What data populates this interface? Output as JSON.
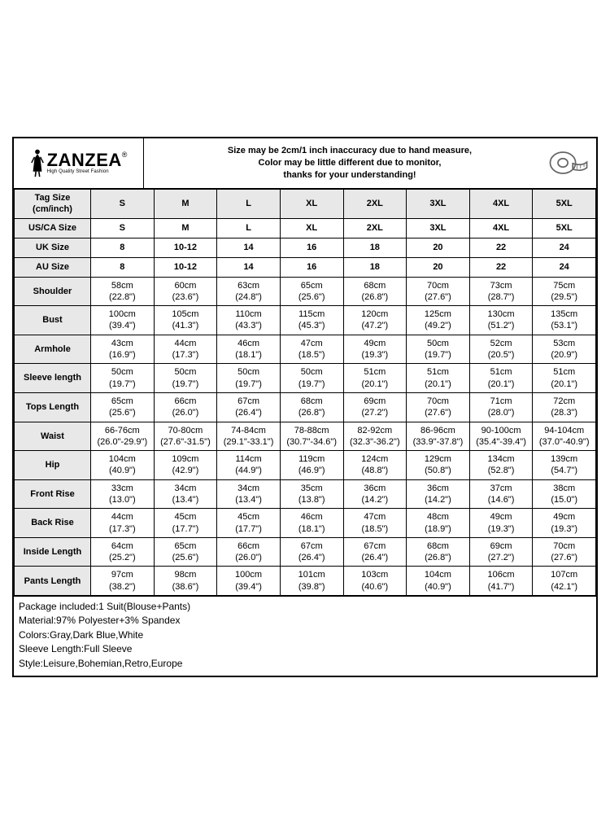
{
  "brand": {
    "name": "ZANZEA",
    "reg": "®",
    "tagline": "High Quality Street Fashion"
  },
  "notice": {
    "line1": "Size may be 2cm/1 inch inaccuracy due to hand measure,",
    "line2": "Color may be little different due to monitor,",
    "line3": "thanks for your understanding!"
  },
  "columns": [
    "S",
    "M",
    "L",
    "XL",
    "2XL",
    "3XL",
    "4XL",
    "5XL"
  ],
  "row_labels": {
    "tag": "Tag Size\n(cm/inch)",
    "us": "US/CA Size",
    "uk": "UK Size",
    "au": "AU Size",
    "shoulder": "Shoulder",
    "bust": "Bust",
    "armhole": "Armhole",
    "sleeve": "Sleeve length",
    "tops": "Tops Length",
    "waist": "Waist",
    "hip": "Hip",
    "frise": "Front Rise",
    "brise": "Back Rise",
    "inside": "Inside Length",
    "pants": "Pants Length"
  },
  "size_rows": {
    "us": [
      "S",
      "M",
      "L",
      "XL",
      "2XL",
      "3XL",
      "4XL",
      "5XL"
    ],
    "uk": [
      "8",
      "10-12",
      "14",
      "16",
      "18",
      "20",
      "22",
      "24"
    ],
    "au": [
      "8",
      "10-12",
      "14",
      "16",
      "18",
      "20",
      "22",
      "24"
    ]
  },
  "meas": {
    "shoulder": [
      {
        "cm": "58cm",
        "in": "(22.8\")"
      },
      {
        "cm": "60cm",
        "in": "(23.6\")"
      },
      {
        "cm": "63cm",
        "in": "(24.8\")"
      },
      {
        "cm": "65cm",
        "in": "(25.6\")"
      },
      {
        "cm": "68cm",
        "in": "(26.8\")"
      },
      {
        "cm": "70cm",
        "in": "(27.6\")"
      },
      {
        "cm": "73cm",
        "in": "(28.7\")"
      },
      {
        "cm": "75cm",
        "in": "(29.5\")"
      }
    ],
    "bust": [
      {
        "cm": "100cm",
        "in": "(39.4\")"
      },
      {
        "cm": "105cm",
        "in": "(41.3\")"
      },
      {
        "cm": "110cm",
        "in": "(43.3\")"
      },
      {
        "cm": "115cm",
        "in": "(45.3\")"
      },
      {
        "cm": "120cm",
        "in": "(47.2\")"
      },
      {
        "cm": "125cm",
        "in": "(49.2\")"
      },
      {
        "cm": "130cm",
        "in": "(51.2\")"
      },
      {
        "cm": "135cm",
        "in": "(53.1\")"
      }
    ],
    "armhole": [
      {
        "cm": "43cm",
        "in": "(16.9\")"
      },
      {
        "cm": "44cm",
        "in": "(17.3\")"
      },
      {
        "cm": "46cm",
        "in": "(18.1\")"
      },
      {
        "cm": "47cm",
        "in": "(18.5\")"
      },
      {
        "cm": "49cm",
        "in": "(19.3\")"
      },
      {
        "cm": "50cm",
        "in": "(19.7\")"
      },
      {
        "cm": "52cm",
        "in": "(20.5\")"
      },
      {
        "cm": "53cm",
        "in": "(20.9\")"
      }
    ],
    "sleeve": [
      {
        "cm": "50cm",
        "in": "(19.7\")"
      },
      {
        "cm": "50cm",
        "in": "(19.7\")"
      },
      {
        "cm": "50cm",
        "in": "(19.7\")"
      },
      {
        "cm": "50cm",
        "in": "(19.7\")"
      },
      {
        "cm": "51cm",
        "in": "(20.1\")"
      },
      {
        "cm": "51cm",
        "in": "(20.1\")"
      },
      {
        "cm": "51cm",
        "in": "(20.1\")"
      },
      {
        "cm": "51cm",
        "in": "(20.1\")"
      }
    ],
    "tops": [
      {
        "cm": "65cm",
        "in": "(25.6\")"
      },
      {
        "cm": "66cm",
        "in": "(26.0\")"
      },
      {
        "cm": "67cm",
        "in": "(26.4\")"
      },
      {
        "cm": "68cm",
        "in": "(26.8\")"
      },
      {
        "cm": "69cm",
        "in": "(27.2\")"
      },
      {
        "cm": "70cm",
        "in": "(27.6\")"
      },
      {
        "cm": "71cm",
        "in": "(28.0\")"
      },
      {
        "cm": "72cm",
        "in": "(28.3\")"
      }
    ],
    "waist": [
      {
        "cm": "66-76cm",
        "in": "(26.0\"-29.9\")"
      },
      {
        "cm": "70-80cm",
        "in": "(27.6\"-31.5\")"
      },
      {
        "cm": "74-84cm",
        "in": "(29.1\"-33.1\")"
      },
      {
        "cm": "78-88cm",
        "in": "(30.7\"-34.6\")"
      },
      {
        "cm": "82-92cm",
        "in": "(32.3\"-36.2\")"
      },
      {
        "cm": "86-96cm",
        "in": "(33.9\"-37.8\")"
      },
      {
        "cm": "90-100cm",
        "in": "(35.4\"-39.4\")"
      },
      {
        "cm": "94-104cm",
        "in": "(37.0\"-40.9\")"
      }
    ],
    "hip": [
      {
        "cm": "104cm",
        "in": "(40.9\")"
      },
      {
        "cm": "109cm",
        "in": "(42.9\")"
      },
      {
        "cm": "114cm",
        "in": "(44.9\")"
      },
      {
        "cm": "119cm",
        "in": "(46.9\")"
      },
      {
        "cm": "124cm",
        "in": "(48.8\")"
      },
      {
        "cm": "129cm",
        "in": "(50.8\")"
      },
      {
        "cm": "134cm",
        "in": "(52.8\")"
      },
      {
        "cm": "139cm",
        "in": "(54.7\")"
      }
    ],
    "frise": [
      {
        "cm": "33cm",
        "in": "(13.0\")"
      },
      {
        "cm": "34cm",
        "in": "(13.4\")"
      },
      {
        "cm": "34cm",
        "in": "(13.4\")"
      },
      {
        "cm": "35cm",
        "in": "(13.8\")"
      },
      {
        "cm": "36cm",
        "in": "(14.2\")"
      },
      {
        "cm": "36cm",
        "in": "(14.2\")"
      },
      {
        "cm": "37cm",
        "in": "(14.6\")"
      },
      {
        "cm": "38cm",
        "in": "(15.0\")"
      }
    ],
    "brise": [
      {
        "cm": "44cm",
        "in": "(17.3\")"
      },
      {
        "cm": "45cm",
        "in": "(17.7\")"
      },
      {
        "cm": "45cm",
        "in": "(17.7\")"
      },
      {
        "cm": "46cm",
        "in": "(18.1\")"
      },
      {
        "cm": "47cm",
        "in": "(18.5\")"
      },
      {
        "cm": "48cm",
        "in": "(18.9\")"
      },
      {
        "cm": "49cm",
        "in": "(19.3\")"
      },
      {
        "cm": "49cm",
        "in": "(19.3\")"
      }
    ],
    "inside": [
      {
        "cm": "64cm",
        "in": "(25.2\")"
      },
      {
        "cm": "65cm",
        "in": "(25.6\")"
      },
      {
        "cm": "66cm",
        "in": "(26.0\")"
      },
      {
        "cm": "67cm",
        "in": "(26.4\")"
      },
      {
        "cm": "67cm",
        "in": "(26.4\")"
      },
      {
        "cm": "68cm",
        "in": "(26.8\")"
      },
      {
        "cm": "69cm",
        "in": "(27.2\")"
      },
      {
        "cm": "70cm",
        "in": "(27.6\")"
      }
    ],
    "pants": [
      {
        "cm": "97cm",
        "in": "(38.2\")"
      },
      {
        "cm": "98cm",
        "in": "(38.6\")"
      },
      {
        "cm": "100cm",
        "in": "(39.4\")"
      },
      {
        "cm": "101cm",
        "in": "(39.8\")"
      },
      {
        "cm": "103cm",
        "in": "(40.6\")"
      },
      {
        "cm": "104cm",
        "in": "(40.9\")"
      },
      {
        "cm": "106cm",
        "in": "(41.7\")"
      },
      {
        "cm": "107cm",
        "in": "(42.1\")"
      }
    ]
  },
  "footer": {
    "l1": "Package included:1 Suit(Blouse+Pants)",
    "l2": "Material:97% Polyester+3% Spandex",
    "l3": "Colors:Gray,Dark Blue,White",
    "l4": "Sleeve Length:Full Sleeve",
    "l5": "Style:Leisure,Bohemian,Retro,Europe"
  }
}
